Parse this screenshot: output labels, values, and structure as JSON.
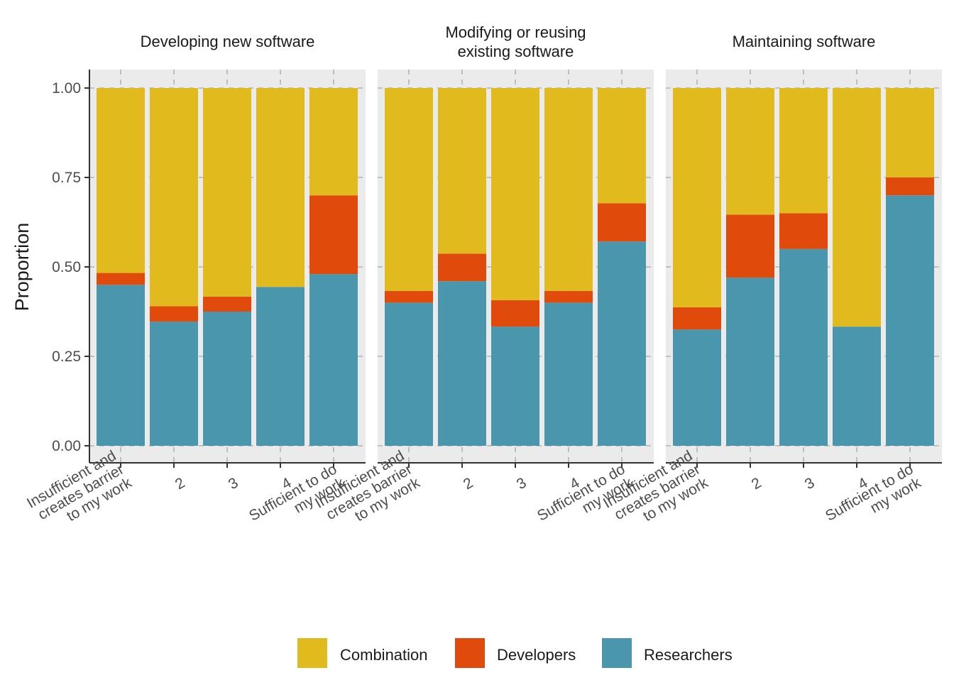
{
  "chart_data": {
    "type": "bar",
    "stacked": true,
    "ylabel": "Proportion",
    "ylim": [
      0,
      1
    ],
    "yticks": [
      "0.00",
      "0.25",
      "0.50",
      "0.75",
      "1.00"
    ],
    "grid": true,
    "legend_position": "bottom",
    "categories": [
      [
        "Insufficient and",
        "creates barrier",
        "to my work"
      ],
      [
        "2"
      ],
      [
        "3"
      ],
      [
        "4"
      ],
      [
        "Sufficient to do",
        "my work"
      ]
    ],
    "series": [
      {
        "name": "Combination",
        "color": "#E1BA1D"
      },
      {
        "name": "Developers",
        "color": "#E04A0A"
      },
      {
        "name": "Researchers",
        "color": "#4A96AD"
      }
    ],
    "facets": [
      {
        "title": [
          "Developing new software"
        ],
        "values": {
          "Researchers": [
            0.45,
            0.347,
            0.375,
            0.444,
            0.48
          ],
          "Developers": [
            0.033,
            0.043,
            0.042,
            0.0,
            0.22
          ],
          "Combination": [
            0.517,
            0.61,
            0.583,
            0.556,
            0.3
          ]
        }
      },
      {
        "title": [
          "Modifying or reusing",
          "existing software"
        ],
        "values": {
          "Researchers": [
            0.4,
            0.46,
            0.333,
            0.4,
            0.571
          ],
          "Developers": [
            0.033,
            0.077,
            0.074,
            0.033,
            0.107
          ],
          "Combination": [
            0.567,
            0.463,
            0.593,
            0.567,
            0.322
          ]
        }
      },
      {
        "title": [
          "Maintaining software"
        ],
        "values": {
          "Researchers": [
            0.325,
            0.47,
            0.55,
            0.333,
            0.7
          ],
          "Developers": [
            0.062,
            0.176,
            0.1,
            0.0,
            0.05
          ],
          "Combination": [
            0.613,
            0.354,
            0.35,
            0.667,
            0.25
          ]
        }
      }
    ]
  }
}
